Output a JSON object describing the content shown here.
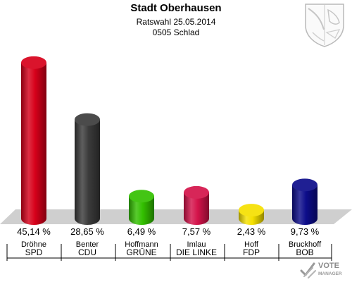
{
  "header": {
    "title": "Stadt Oberhausen",
    "subtitle": "Ratswahl 25.05.2014",
    "district": "0505 Schlad"
  },
  "logo": {
    "brand_text_1": "VOTE",
    "brand_text_2": "MANAGER",
    "icon": "ballot-check-icon"
  },
  "crest": {
    "icon": "coat-of-arms-icon"
  },
  "chart_data": {
    "type": "bar",
    "title": "Stadt Oberhausen",
    "subtitle": "Ratswahl 25.05.2014 · 0505 Schlad",
    "ylim": [
      0,
      50
    ],
    "grid": false,
    "legend": "none",
    "unit": "%",
    "bars": [
      {
        "candidate": "Dröhne",
        "party": "SPD",
        "value": 45.14,
        "label": "45,14 %",
        "color": "#d7001a"
      },
      {
        "candidate": "Benter",
        "party": "CDU",
        "value": 28.65,
        "label": "28,65 %",
        "color": "#3b3b3b"
      },
      {
        "candidate": "Hoffmann",
        "party": "GRÜNE",
        "value": 6.49,
        "label": "6,49 %",
        "color": "#33c000"
      },
      {
        "candidate": "Imlau",
        "party": "DIE LINKE",
        "value": 7.57,
        "label": "7,57 %",
        "color": "#d4134a"
      },
      {
        "candidate": "Hoff",
        "party": "FDP",
        "value": 2.43,
        "label": "2,43 %",
        "color": "#f5e000"
      },
      {
        "candidate": "Bruckhoff",
        "party": "BOB",
        "value": 9.73,
        "label": "9,73 %",
        "color": "#0c0c8a"
      }
    ]
  }
}
